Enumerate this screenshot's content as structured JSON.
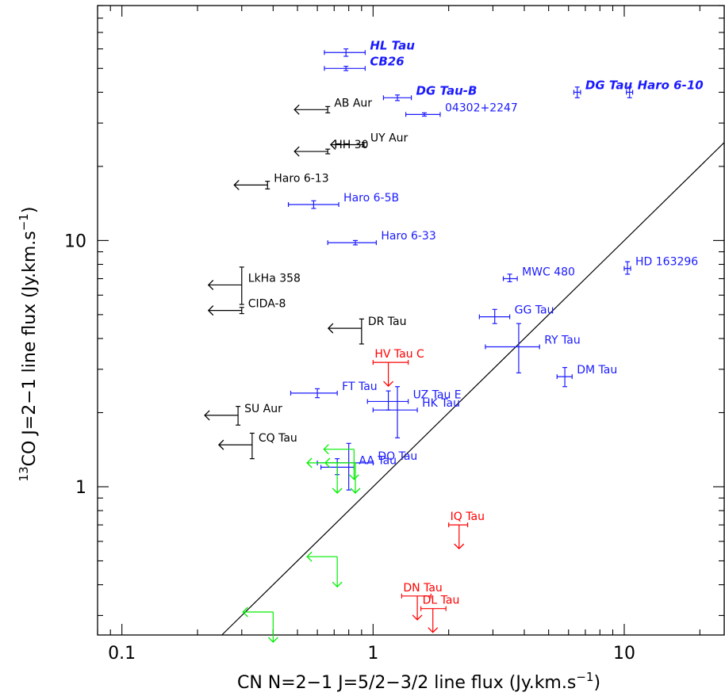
{
  "chart_data": {
    "type": "scatter",
    "xscale": "log",
    "yscale": "log",
    "xlim": [
      0.08,
      25
    ],
    "ylim": [
      0.25,
      90
    ],
    "grid": false,
    "xlabel": "CN N=2−1 J=5/2−3/2 line flux (Jy.km.s",
    "xlabel_sup": "−1",
    "xlabel_end": ")",
    "ylabel_sup_pre": "13",
    "ylabel": "CO J=2−1 line flux (Jy.km.s",
    "ylabel_sup": "−1",
    "ylabel_end": ")",
    "xticks": [
      {
        "value": 0.1,
        "label": "0.1"
      },
      {
        "value": 1,
        "label": "1"
      },
      {
        "value": 10,
        "label": "10"
      }
    ],
    "yticks": [
      {
        "value": 1,
        "label": "1"
      },
      {
        "value": 10,
        "label": "10"
      }
    ],
    "line": {
      "x": [
        0.25,
        25
      ],
      "y": [
        0.25,
        25
      ]
    },
    "colors": {
      "detection": "#1a1aff",
      "upper_limit": "#000000",
      "red_limit": "#ff0000",
      "green_limit": "#00ee00",
      "line": "#000000"
    },
    "series": [
      {
        "name": "HL Tau",
        "kind": "detection",
        "italic": true,
        "x": 0.78,
        "xerr": [
          0.64,
          0.93
        ],
        "y": 58,
        "yerr": [
          56,
          60
        ]
      },
      {
        "name": "CB26",
        "kind": "detection",
        "italic": true,
        "x": 0.78,
        "xerr": [
          0.64,
          0.93
        ],
        "y": 50,
        "yerr": [
          49,
          51
        ]
      },
      {
        "name": "DG Tau-B",
        "kind": "detection",
        "italic": true,
        "x": 1.25,
        "xerr": [
          1.1,
          1.42
        ],
        "y": 38,
        "yerr": [
          37,
          39
        ]
      },
      {
        "name": "DG Tau",
        "kind": "detection",
        "italic": true,
        "x": 6.5,
        "xerr": [
          6.3,
          6.7
        ],
        "y": 40,
        "yerr": [
          38,
          42
        ]
      },
      {
        "name": "Haro 6-10",
        "kind": "detection",
        "italic": true,
        "x": 10.5,
        "xerr": [
          10.2,
          10.8
        ],
        "y": 40,
        "yerr": [
          38,
          42
        ]
      },
      {
        "name": "04302+2247",
        "kind": "detection",
        "x": 1.6,
        "xerr": [
          1.35,
          1.85
        ],
        "y": 32.5,
        "yerr": [
          32,
          33
        ]
      },
      {
        "name": "Haro 6-5B",
        "kind": "detection",
        "x": 0.58,
        "xerr": [
          0.46,
          0.73
        ],
        "y": 14.0,
        "yerr": [
          13.5,
          14.5
        ]
      },
      {
        "name": "Haro 6-33",
        "kind": "detection",
        "x": 0.85,
        "xerr": [
          0.66,
          1.03
        ],
        "y": 9.8,
        "yerr": [
          9.6,
          10.0
        ]
      },
      {
        "name": "MWC 480",
        "kind": "detection",
        "x": 3.5,
        "xerr": [
          3.3,
          3.75
        ],
        "y": 7.0,
        "yerr": [
          6.8,
          7.3
        ]
      },
      {
        "name": "HD 163296",
        "kind": "detection",
        "x": 10.3,
        "xerr": [
          10.0,
          10.6
        ],
        "y": 7.7,
        "yerr": [
          7.3,
          8.2
        ]
      },
      {
        "name": "GG Tau",
        "kind": "detection",
        "x": 3.05,
        "xerr": [
          2.65,
          3.5
        ],
        "y": 4.9,
        "yerr": [
          4.6,
          5.25
        ]
      },
      {
        "name": "RY Tau",
        "kind": "detection",
        "x": 3.8,
        "xerr": [
          2.8,
          4.6
        ],
        "y": 3.7,
        "yerr": [
          2.9,
          4.6
        ]
      },
      {
        "name": "DM Tau",
        "kind": "detection",
        "x": 5.8,
        "xerr": [
          5.4,
          6.2
        ],
        "y": 2.8,
        "yerr": [
          2.55,
          3.05
        ]
      },
      {
        "name": "FT Tau",
        "kind": "detection",
        "x": 0.6,
        "xerr": [
          0.47,
          0.72
        ],
        "y": 2.4,
        "yerr": [
          2.3,
          2.5
        ]
      },
      {
        "name": "UZ Tau E",
        "kind": "detection",
        "x": 1.15,
        "xerr": [
          0.95,
          1.38
        ],
        "y": 2.22,
        "yerr": [
          2.05,
          2.45
        ]
      },
      {
        "name": "HK Tau",
        "kind": "detection",
        "x": 1.25,
        "xerr": [
          1.0,
          1.5
        ],
        "y": 2.05,
        "yerr": [
          1.58,
          2.55
        ]
      },
      {
        "name": "AA Tau",
        "kind": "detection",
        "label_only": false,
        "x": 0.72,
        "xerr": [
          0.62,
          0.84
        ],
        "y": 1.2,
        "yerr": [
          1.12,
          1.3
        ]
      },
      {
        "name": "DO Tau",
        "kind": "detection",
        "x": 0.8,
        "xerr": [
          0.6,
          1.0
        ],
        "y": 1.25,
        "yerr": [
          0.97,
          1.5
        ]
      },
      {
        "name": "AB Aur",
        "kind": "upper_x",
        "x": 0.66,
        "y": 34,
        "yerr": [
          33,
          35
        ]
      },
      {
        "name": "UY Aur",
        "kind": "upper_x",
        "x": 0.92,
        "y": 24.5,
        "yerr": [
          24,
          25
        ]
      },
      {
        "name": "HH 30",
        "kind": "upper_x",
        "x": 0.66,
        "y": 23,
        "yerr": [
          22.5,
          23.5
        ]
      },
      {
        "name": "Haro 6-13",
        "kind": "upper_x",
        "x": 0.38,
        "y": 16.8,
        "yerr": [
          16.2,
          17.4
        ]
      },
      {
        "name": "LkHa 358",
        "kind": "upper_x",
        "x": 0.3,
        "y": 6.6,
        "yerr": [
          5.5,
          7.8
        ]
      },
      {
        "name": "CIDA-8",
        "kind": "upper_x",
        "x": 0.3,
        "y": 5.2,
        "yerr": [
          5.05,
          5.35
        ]
      },
      {
        "name": "DR Tau",
        "kind": "upper_x",
        "x": 0.9,
        "y": 4.4,
        "yerr": [
          3.8,
          4.8
        ]
      },
      {
        "name": "SU Aur",
        "kind": "upper_x",
        "x": 0.29,
        "y": 1.95,
        "yerr": [
          1.78,
          2.12
        ]
      },
      {
        "name": "CQ Tau",
        "kind": "upper_x",
        "x": 0.33,
        "y": 1.48,
        "yerr": [
          1.3,
          1.65
        ]
      },
      {
        "name": "HV Tau C",
        "kind": "upper_y",
        "x": 1.15,
        "xerr": [
          1.0,
          1.38
        ],
        "y": 3.2
      },
      {
        "name": "IQ Tau",
        "kind": "upper_y",
        "x": 2.2,
        "xerr": [
          2.0,
          2.38
        ],
        "y": 0.7
      },
      {
        "name": "DN Tau",
        "kind": "upper_y",
        "x": 1.5,
        "xerr": [
          1.3,
          1.7
        ],
        "y": 0.36
      },
      {
        "name": "DL Tau",
        "kind": "upper_y",
        "x": 1.73,
        "xerr": [
          1.55,
          1.95
        ],
        "y": 0.32
      },
      {
        "name": "",
        "kind": "upper_xy",
        "x": 0.84,
        "y": 1.42
      },
      {
        "name": "",
        "kind": "upper_xy",
        "x": 0.85,
        "y": 1.25
      },
      {
        "name": "",
        "kind": "upper_xy",
        "x": 0.72,
        "y": 1.25
      },
      {
        "name": "",
        "kind": "upper_xy",
        "x": 0.72,
        "y": 0.52
      },
      {
        "name": "",
        "kind": "upper_xy",
        "x": 0.4,
        "y": 0.31
      }
    ]
  }
}
